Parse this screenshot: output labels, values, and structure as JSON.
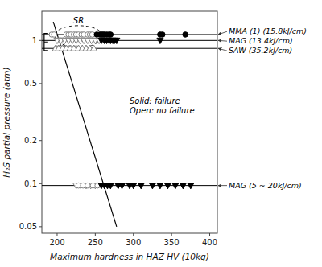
{
  "chart_data": {
    "type": "scatter",
    "title": "",
    "x_label": "Maximum hardness in HAZ HV (10kg)",
    "y_label": "H₂S partial pressure (atm)",
    "log": "y",
    "grid": false,
    "xlim": [
      180,
      410
    ],
    "ylim": [
      0.045,
      1.6
    ],
    "xticks": [
      200,
      250,
      300,
      350,
      400
    ],
    "yticks": [
      0.05,
      0.1,
      0.2,
      0.5,
      {
        "value": 1.0,
        "label": "1"
      }
    ],
    "series": [
      {
        "marker": "circle-open",
        "color": "gray",
        "x": [
          193,
          196,
          199,
          202,
          202,
          205,
          205,
          208,
          208,
          212,
          215,
          215,
          218,
          218,
          222,
          225,
          225,
          228,
          232,
          235
        ],
        "values": [
          1.1,
          1.1,
          0.88,
          0.88,
          1.0,
          0.88,
          1.0,
          1.0,
          0.88,
          1.1,
          1.1,
          0.88,
          1.1,
          0.88,
          1.1,
          1.1,
          0.88,
          1.1,
          1.1,
          1.1
        ]
      },
      {
        "marker": "circle-open",
        "color": "gray",
        "x": [
          240,
          243,
          246
        ],
        "values": [
          1.1,
          1.1,
          1.1
        ]
      },
      {
        "marker": "triangle-down-open",
        "color": "gray",
        "x": [
          200,
          205,
          210,
          215,
          220,
          225,
          230,
          235,
          240,
          245,
          250,
          255
        ],
        "values": [
          1.0,
          1.0,
          1.0,
          1.0,
          1.0,
          1.0,
          1.0,
          1.0,
          1.0,
          1.0,
          1.0,
          1.0
        ]
      },
      {
        "marker": "triangle-up-open",
        "color": "gray",
        "x": [
          198,
          202,
          207,
          212,
          217,
          222,
          228,
          233,
          238,
          243,
          248
        ],
        "values": [
          0.88,
          0.88,
          0.88,
          0.88,
          0.88,
          0.88,
          0.88,
          0.88,
          0.88,
          0.88,
          0.88
        ]
      },
      {
        "marker": "circle",
        "color": "black",
        "x": [
          252,
          256,
          258,
          260,
          262,
          265,
          268,
          270,
          335,
          338,
          368
        ],
        "values": [
          1.1,
          1.1,
          1.1,
          1.1,
          1.1,
          1.1,
          1.1,
          1.1,
          1.1,
          1.1,
          1.1
        ]
      },
      {
        "marker": "triangle-down",
        "color": "black",
        "x": [
          258,
          262,
          265,
          268,
          270,
          273,
          275,
          278,
          335
        ],
        "values": [
          1.0,
          1.0,
          1.0,
          1.0,
          1.0,
          1.0,
          1.0,
          1.0,
          1.0
        ]
      },
      {
        "marker": "triangle-down-open",
        "color": "gray",
        "x": [
          225,
          231,
          238,
          244,
          250
        ],
        "values": [
          0.097,
          0.097,
          0.097,
          0.097,
          0.097
        ]
      },
      {
        "marker": "circle-open",
        "color": "gray",
        "x": [
          228,
          234,
          240,
          247,
          253
        ],
        "values": [
          0.097,
          0.097,
          0.097,
          0.097,
          0.097
        ]
      },
      {
        "marker": "triangle-down",
        "color": "black",
        "x": [
          258,
          262,
          266,
          270,
          280,
          285,
          295,
          300,
          310,
          325,
          335,
          345,
          355,
          365,
          375
        ],
        "values": [
          0.097,
          0.097,
          0.097,
          0.097,
          0.097,
          0.097,
          0.097,
          0.097,
          0.097,
          0.097,
          0.097,
          0.097,
          0.097,
          0.097,
          0.097
        ]
      }
    ],
    "reference_lines": [
      {
        "value": 1.1,
        "label": "MMA (1) (15.8kJ/cm)"
      },
      {
        "value": 1.0,
        "label": "MAG (13.4kJ/cm)"
      },
      {
        "value": 0.88,
        "label": "SAW (35.2kJ/cm)"
      },
      {
        "value": 0.097,
        "label": "MAG (5 ~ 20kJ/cm)"
      }
    ],
    "dividing_line": {
      "x": [
        195,
        278
      ],
      "values": [
        1.35,
        0.05
      ]
    },
    "ellipse": {
      "center_x": 228,
      "center_y": 1.08,
      "width": 62,
      "height": 0.38,
      "label": "SR"
    },
    "bracket": {
      "x": 183,
      "y_top": 1.12,
      "y_bottom": 0.85
    },
    "note": {
      "text": "Solid: failure\nOpen: no failure",
      "x": 295,
      "y": 0.35
    }
  }
}
